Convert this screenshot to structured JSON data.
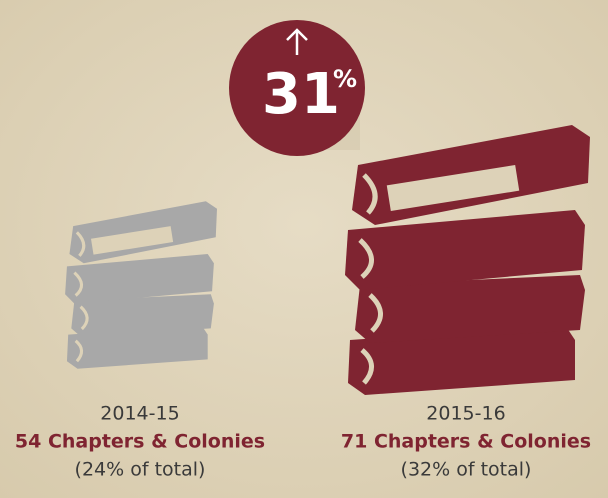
{
  "badge": {
    "value": "31",
    "unit": "%"
  },
  "items": [
    {
      "year": "2014-15",
      "count": "54 Chapters & Colonies",
      "share": "(24% of total)"
    },
    {
      "year": "2015-16",
      "count": "71 Chapters & Colonies",
      "share": "(32% of total)"
    }
  ]
}
